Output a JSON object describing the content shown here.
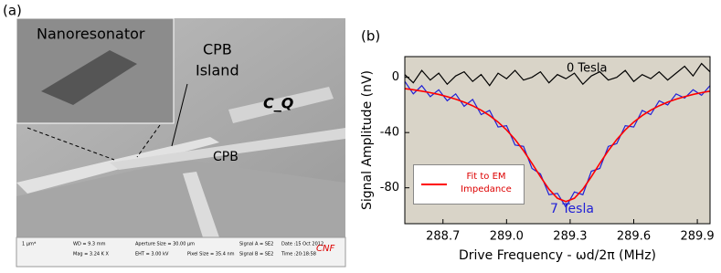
{
  "panel_a": {
    "label": "(a)",
    "inset_title": "Nanoresonator",
    "cpb_island_1": "CPB",
    "cpb_island_2": "Island",
    "cq": "C_Q",
    "cpb": "CPB",
    "footer": {
      "scale": "1 µm*",
      "wd": "WD = 9.3 mm",
      "mag": "Mag = 3.24 K X",
      "aperture": "Aperture Size = 30.00 µm",
      "eht": "EHT = 3.00 kV",
      "pixel": "Pixel Size = 35.4 nm",
      "signal_a": "Signal A = SE2",
      "signal_b": "Signal B = SE2",
      "date": "Date :15 Oct 2012",
      "time": "Time :20:18:58",
      "logo": "CNF"
    }
  },
  "panel_b_label": "(b)",
  "chart_data": {
    "type": "line",
    "x_label": "Drive Frequency - ωd/2π (MHz)",
    "y_label": "Signal  Amplitude (nV)",
    "x": [
      288.52,
      288.56,
      288.6,
      288.64,
      288.68,
      288.72,
      288.76,
      288.8,
      288.84,
      288.88,
      288.92,
      288.96,
      289.0,
      289.04,
      289.08,
      289.12,
      289.16,
      289.2,
      289.24,
      289.28,
      289.32,
      289.36,
      289.4,
      289.44,
      289.48,
      289.52,
      289.56,
      289.6,
      289.64,
      289.68,
      289.72,
      289.76,
      289.8,
      289.84,
      289.88,
      289.92,
      289.96
    ],
    "series": [
      {
        "name": "0 Tesla",
        "color": "#000000",
        "values": [
          2,
          -4,
          5,
          -2,
          3,
          -5,
          1,
          4,
          -3,
          2,
          -6,
          3,
          -1,
          5,
          -2,
          0,
          4,
          -4,
          2,
          -1,
          3,
          -5,
          1,
          4,
          -2,
          0,
          5,
          -3,
          2,
          -1,
          4,
          -2,
          3,
          8,
          1,
          10,
          4
        ]
      },
      {
        "name": "7 Tesla",
        "color": "#1f1fd6",
        "values": [
          -3,
          -12,
          -6,
          -14,
          -9,
          -17,
          -12,
          -21,
          -16,
          -27,
          -24,
          -36,
          -35,
          -49,
          -50,
          -66,
          -70,
          -85,
          -84,
          -94,
          -83,
          -85,
          -68,
          -66,
          -50,
          -48,
          -35,
          -36,
          -24,
          -27,
          -17,
          -20,
          -12,
          -15,
          -9,
          -13,
          -6
        ]
      },
      {
        "name": "Fit to EM Impedance",
        "color": "#ff0000",
        "values": [
          -8.2,
          -9,
          -10,
          -11.1,
          -12.4,
          -14,
          -15.8,
          -18,
          -20.6,
          -23.8,
          -27.7,
          -32.4,
          -38.1,
          -45,
          -53.1,
          -62.3,
          -72,
          -81,
          -87.6,
          -90,
          -87.6,
          -81,
          -72,
          -62.3,
          -53.1,
          -45,
          -38.1,
          -32.4,
          -27.7,
          -23.8,
          -20.6,
          -18,
          -15.8,
          -14,
          -12.4,
          -11.1,
          -10
        ]
      }
    ],
    "xlim": [
      288.52,
      289.96
    ],
    "ylim": [
      -106,
      15
    ],
    "xticks": [
      288.7,
      {
        "value": 289,
        "label": "289.0"
      },
      289.3,
      289.6,
      289.9
    ],
    "yticks": [
      0,
      -40,
      -80
    ],
    "background": "#d9d4c8"
  }
}
